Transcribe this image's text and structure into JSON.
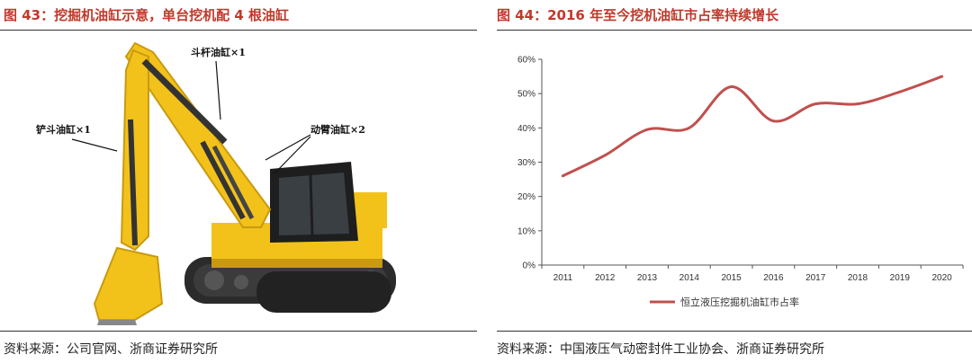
{
  "left_panel": {
    "title": "图 43：挖掘机油缸示意，单台挖机配 4 根油缸",
    "source": "资料来源：公司官网、浙商证券研究所",
    "callouts": {
      "arm": "斗杆油缸×1",
      "bucket": "铲斗油缸×1",
      "boom": "动臂油缸×2"
    },
    "colors": {
      "body": "#f2c21b",
      "body_dark": "#c99a10",
      "track": "#2b2b2b",
      "cab": "#1e1e1e"
    }
  },
  "right_panel": {
    "title": "图 44：2016 年至今挖机油缸市占率持续增长",
    "source": "资料来源：中国液压气动密封件工业协会、浙商证券研究所"
  },
  "chart_data": {
    "type": "line",
    "title": "",
    "xlabel": "",
    "ylabel": "",
    "categories": [
      "2011",
      "2012",
      "2013",
      "2014",
      "2015",
      "2016",
      "2017",
      "2018",
      "2019",
      "2020"
    ],
    "yticks": [
      "0%",
      "10%",
      "20%",
      "30%",
      "40%",
      "50%",
      "60%"
    ],
    "ylim": [
      0,
      60
    ],
    "grid": false,
    "legend_position": "bottom",
    "series": [
      {
        "name": "恒立液压挖掘机油缸市占率",
        "color": "#c0504d",
        "values": [
          26,
          32,
          39.5,
          40,
          52,
          42,
          47,
          47,
          50.5,
          55
        ]
      }
    ]
  }
}
